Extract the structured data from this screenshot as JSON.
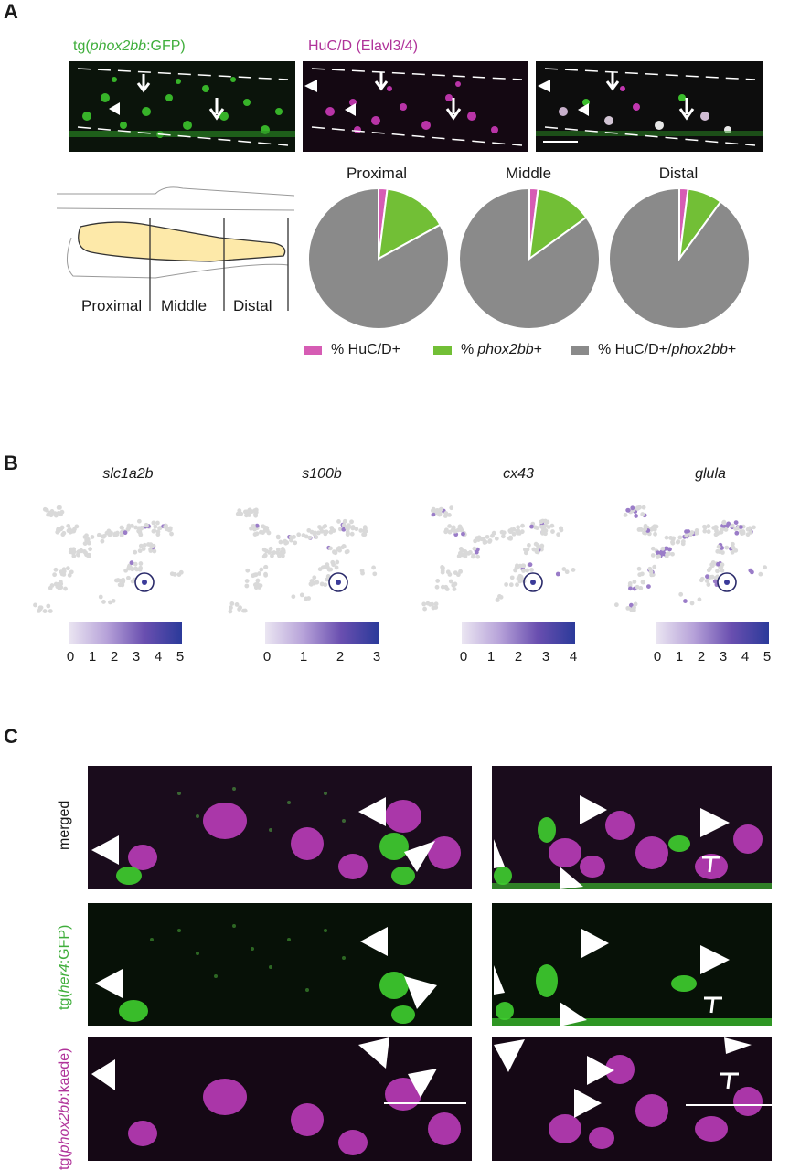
{
  "panels": {
    "A": {
      "letter": "A",
      "image_titles": {
        "green_prefix": "tg(",
        "green_gene": "phox2bb",
        "green_suffix": ":GFP)",
        "magenta": "HuC/D (Elavl3/4)"
      },
      "schematic_regions": [
        "Proximal",
        "Middle",
        "Distal"
      ],
      "pie_titles": [
        "Proximal",
        "Middle",
        "Distal"
      ],
      "chart_data": [
        {
          "type": "pie",
          "title": "Proximal",
          "categories": [
            "% HuC/D+",
            "% phox2bb+",
            "% HuC/D+/phox2bb+"
          ],
          "values": [
            2,
            15,
            83
          ]
        },
        {
          "type": "pie",
          "title": "Middle",
          "categories": [
            "% HuC/D+",
            "% phox2bb+",
            "% HuC/D+/phox2bb+"
          ],
          "values": [
            2,
            13,
            85
          ]
        },
        {
          "type": "pie",
          "title": "Distal",
          "categories": [
            "% HuC/D+",
            "% phox2bb+",
            "% HuC/D+/phox2bb+"
          ],
          "values": [
            2,
            8,
            90
          ]
        }
      ],
      "legend": {
        "huc": "% HuC/D+",
        "phox_gene": "phox2bb",
        "phox_suffix": "+",
        "both_prefix": "% HuC/D+/",
        "both_gene": "phox2bb",
        "both_suffix": "+",
        "pct": "% "
      },
      "colors": {
        "huc": "#d65cb4",
        "phox": "#72bf36",
        "both": "#8a8a8a"
      }
    },
    "B": {
      "letter": "B",
      "genes": [
        "slc1a2b",
        "s100b",
        "cx43",
        "glula"
      ],
      "scales": [
        [
          "0",
          "1",
          "2",
          "3",
          "4",
          "5"
        ],
        [
          "0",
          "1",
          "2",
          "3"
        ],
        [
          "0",
          "1",
          "2",
          "3",
          "4"
        ],
        [
          "0",
          "1",
          "2",
          "3",
          "4",
          "5"
        ]
      ]
    },
    "C": {
      "letter": "C",
      "row_labels": {
        "merged": "merged",
        "her4_prefix": "tg(",
        "her4_gene": "her4",
        "her4_suffix": ":GFP)",
        "kaede_prefix": "tg(",
        "kaede_gene": "phox2bb",
        "kaede_suffix": ":kaede)"
      }
    }
  }
}
